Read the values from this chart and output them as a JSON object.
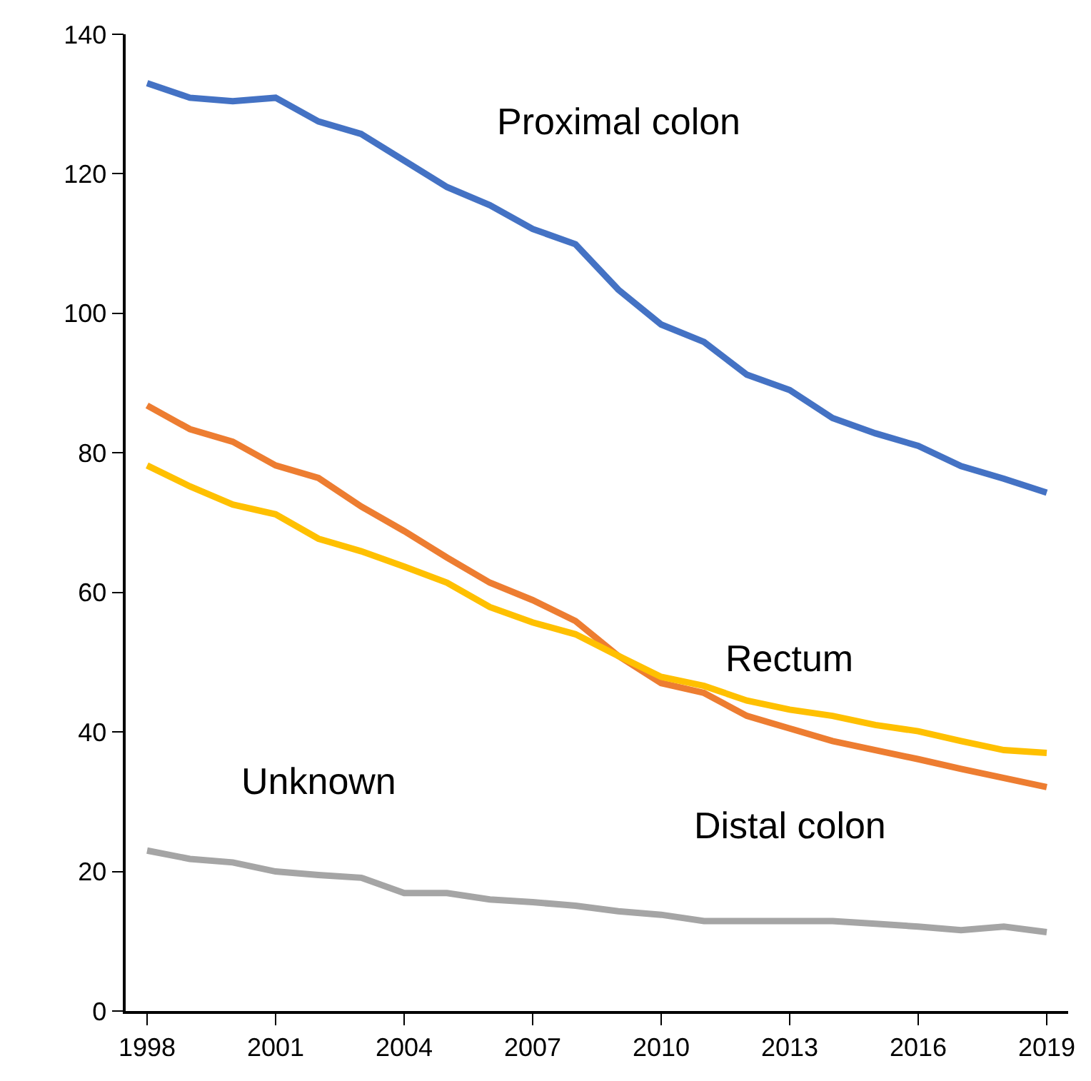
{
  "chart_data": {
    "type": "line",
    "x": [
      1998,
      1999,
      2000,
      2001,
      2002,
      2003,
      2004,
      2005,
      2006,
      2007,
      2008,
      2009,
      2010,
      2011,
      2012,
      2013,
      2014,
      2015,
      2016,
      2017,
      2018,
      2019
    ],
    "series": [
      {
        "name": "Proximal colon",
        "color": "#4472c4",
        "values": [
          133.0,
          130.9,
          130.4,
          130.9,
          127.5,
          125.7,
          121.9,
          118.1,
          115.5,
          112.1,
          109.9,
          103.4,
          98.4,
          95.9,
          91.2,
          89.0,
          85.0,
          82.8,
          81.0,
          78.1,
          76.3,
          74.3
        ]
      },
      {
        "name": "Distal colon",
        "color": "#ed7d31",
        "values": [
          86.8,
          83.4,
          81.6,
          78.2,
          76.4,
          72.3,
          68.8,
          65.0,
          61.4,
          58.9,
          55.9,
          50.9,
          47.0,
          45.6,
          42.3,
          40.5,
          38.7,
          37.4,
          36.1,
          34.7,
          33.4,
          32.1
        ]
      },
      {
        "name": "Rectum",
        "color": "#ffc000",
        "values": [
          78.2,
          75.2,
          72.6,
          71.2,
          67.7,
          65.9,
          63.7,
          61.4,
          57.9,
          55.7,
          54.0,
          50.9,
          47.9,
          46.6,
          44.5,
          43.2,
          42.3,
          41.0,
          40.1,
          38.7,
          37.4,
          37.0
        ]
      },
      {
        "name": "Unknown",
        "color": "#a5a5a5",
        "values": [
          23.0,
          21.8,
          21.3,
          20.0,
          19.5,
          19.1,
          16.9,
          16.9,
          16.0,
          15.6,
          15.1,
          14.3,
          13.8,
          12.9,
          12.9,
          12.9,
          12.9,
          12.5,
          12.1,
          11.6,
          12.1,
          11.3
        ]
      }
    ],
    "xlim": [
      1997.5,
      2019.5
    ],
    "xticks": [
      1998,
      2001,
      2004,
      2007,
      2010,
      2013,
      2016,
      2019
    ],
    "ylim": [
      0,
      140
    ],
    "yticks": [
      0,
      20,
      40,
      60,
      80,
      100,
      120,
      140
    ],
    "legend": false,
    "marker": "none",
    "line_style": "solid"
  }
}
